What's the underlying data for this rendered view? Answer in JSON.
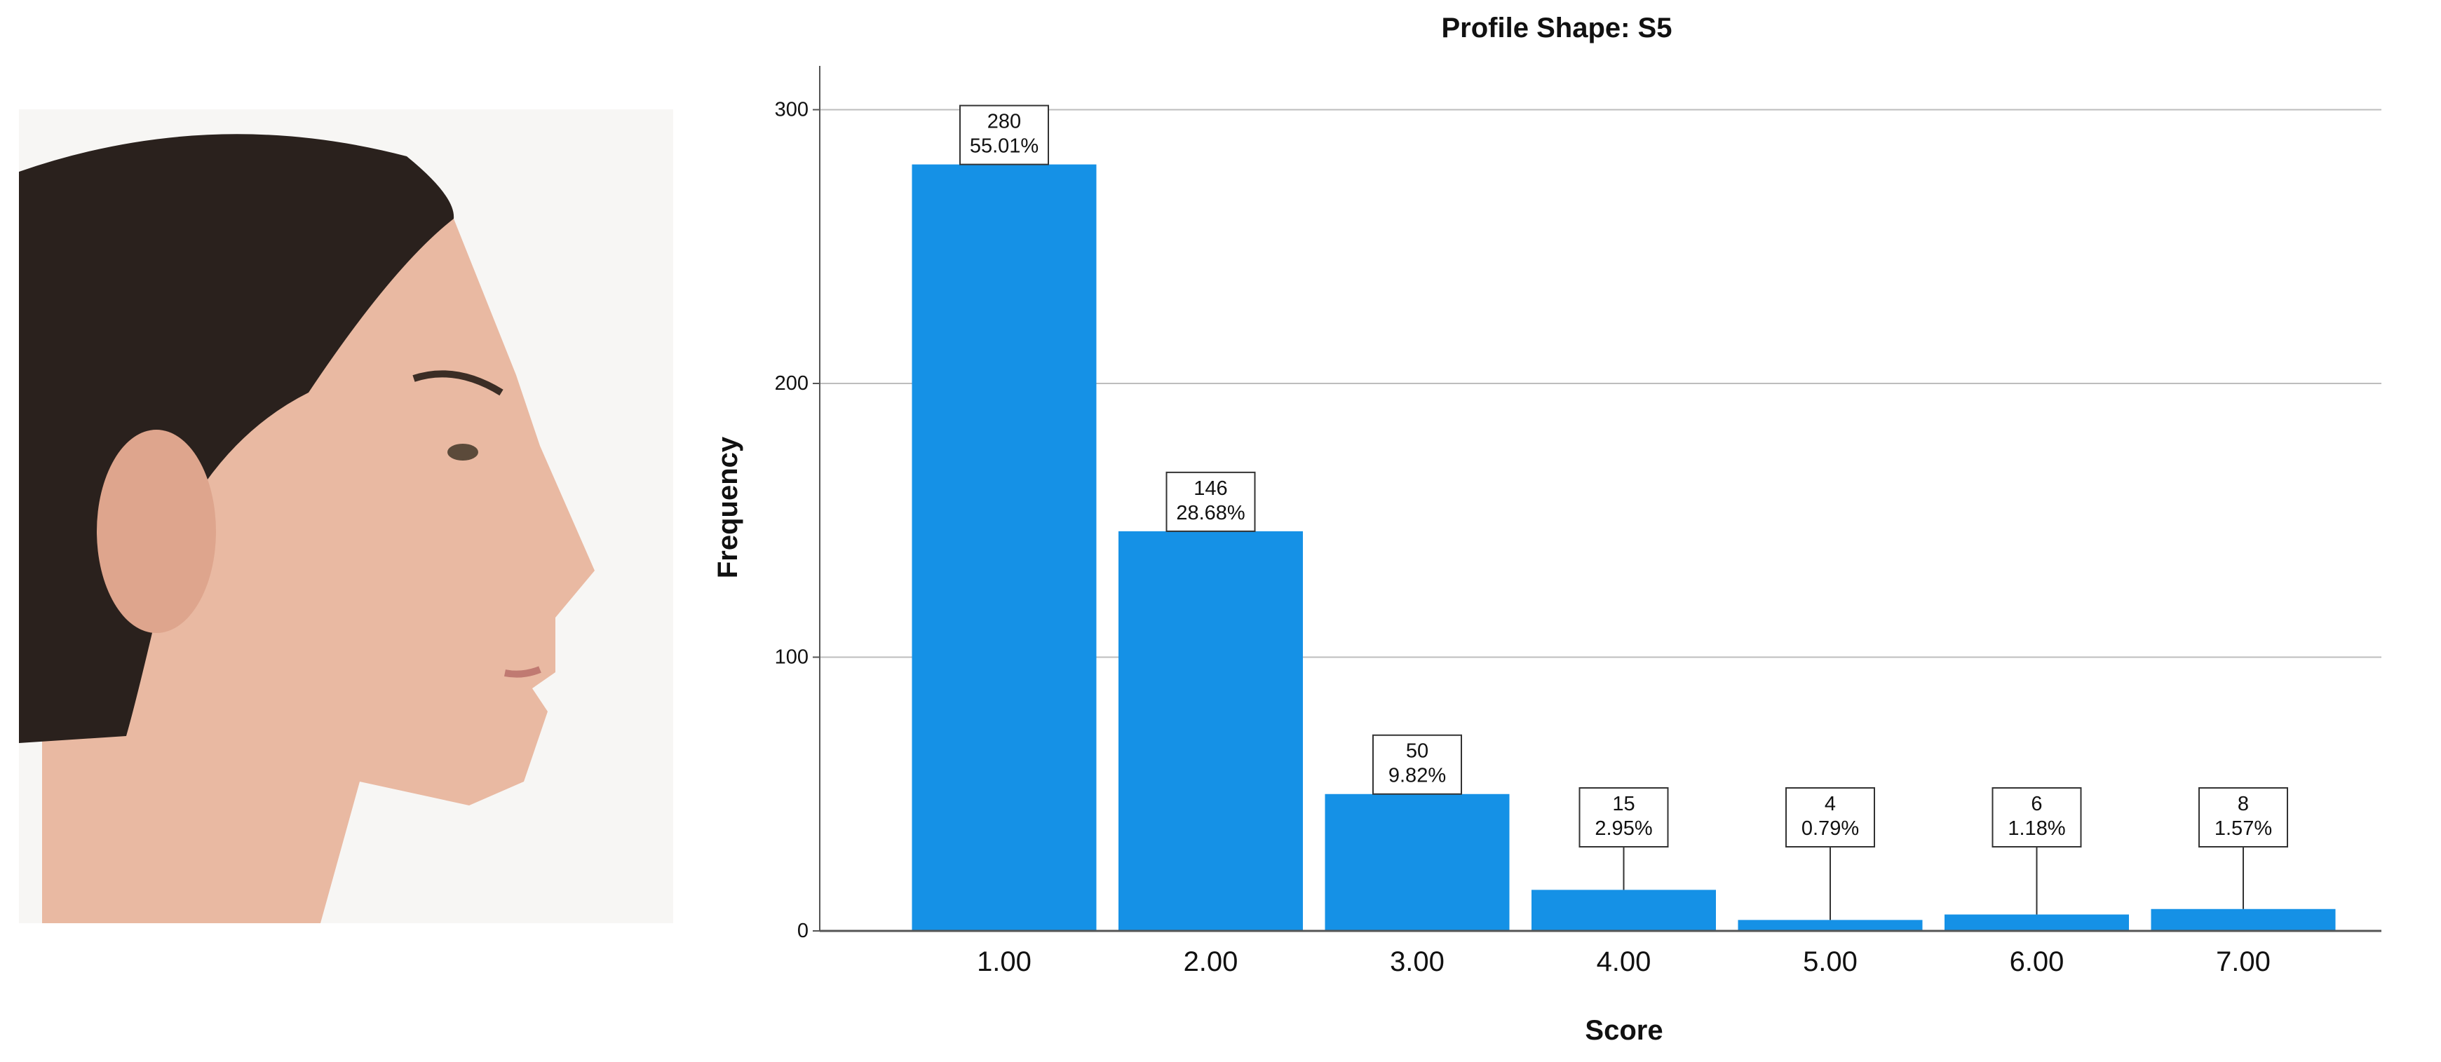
{
  "chart_data": {
    "type": "bar",
    "title": "Profile Shape: S5",
    "x_label": "Score",
    "y_label": "Frequency",
    "categories": [
      "1.00",
      "2.00",
      "3.00",
      "4.00",
      "5.00",
      "6.00",
      "7.00"
    ],
    "values": [
      280,
      146,
      50,
      15,
      4,
      6,
      8
    ],
    "percent_labels": [
      "55.01%",
      "28.68%",
      "9.82%",
      "2.95%",
      "0.79%",
      "1.18%",
      "1.57%"
    ],
    "color": "#1591e6",
    "ylim": [
      0,
      316
    ],
    "yticks": [
      0,
      100,
      200,
      300
    ],
    "grid": true
  }
}
